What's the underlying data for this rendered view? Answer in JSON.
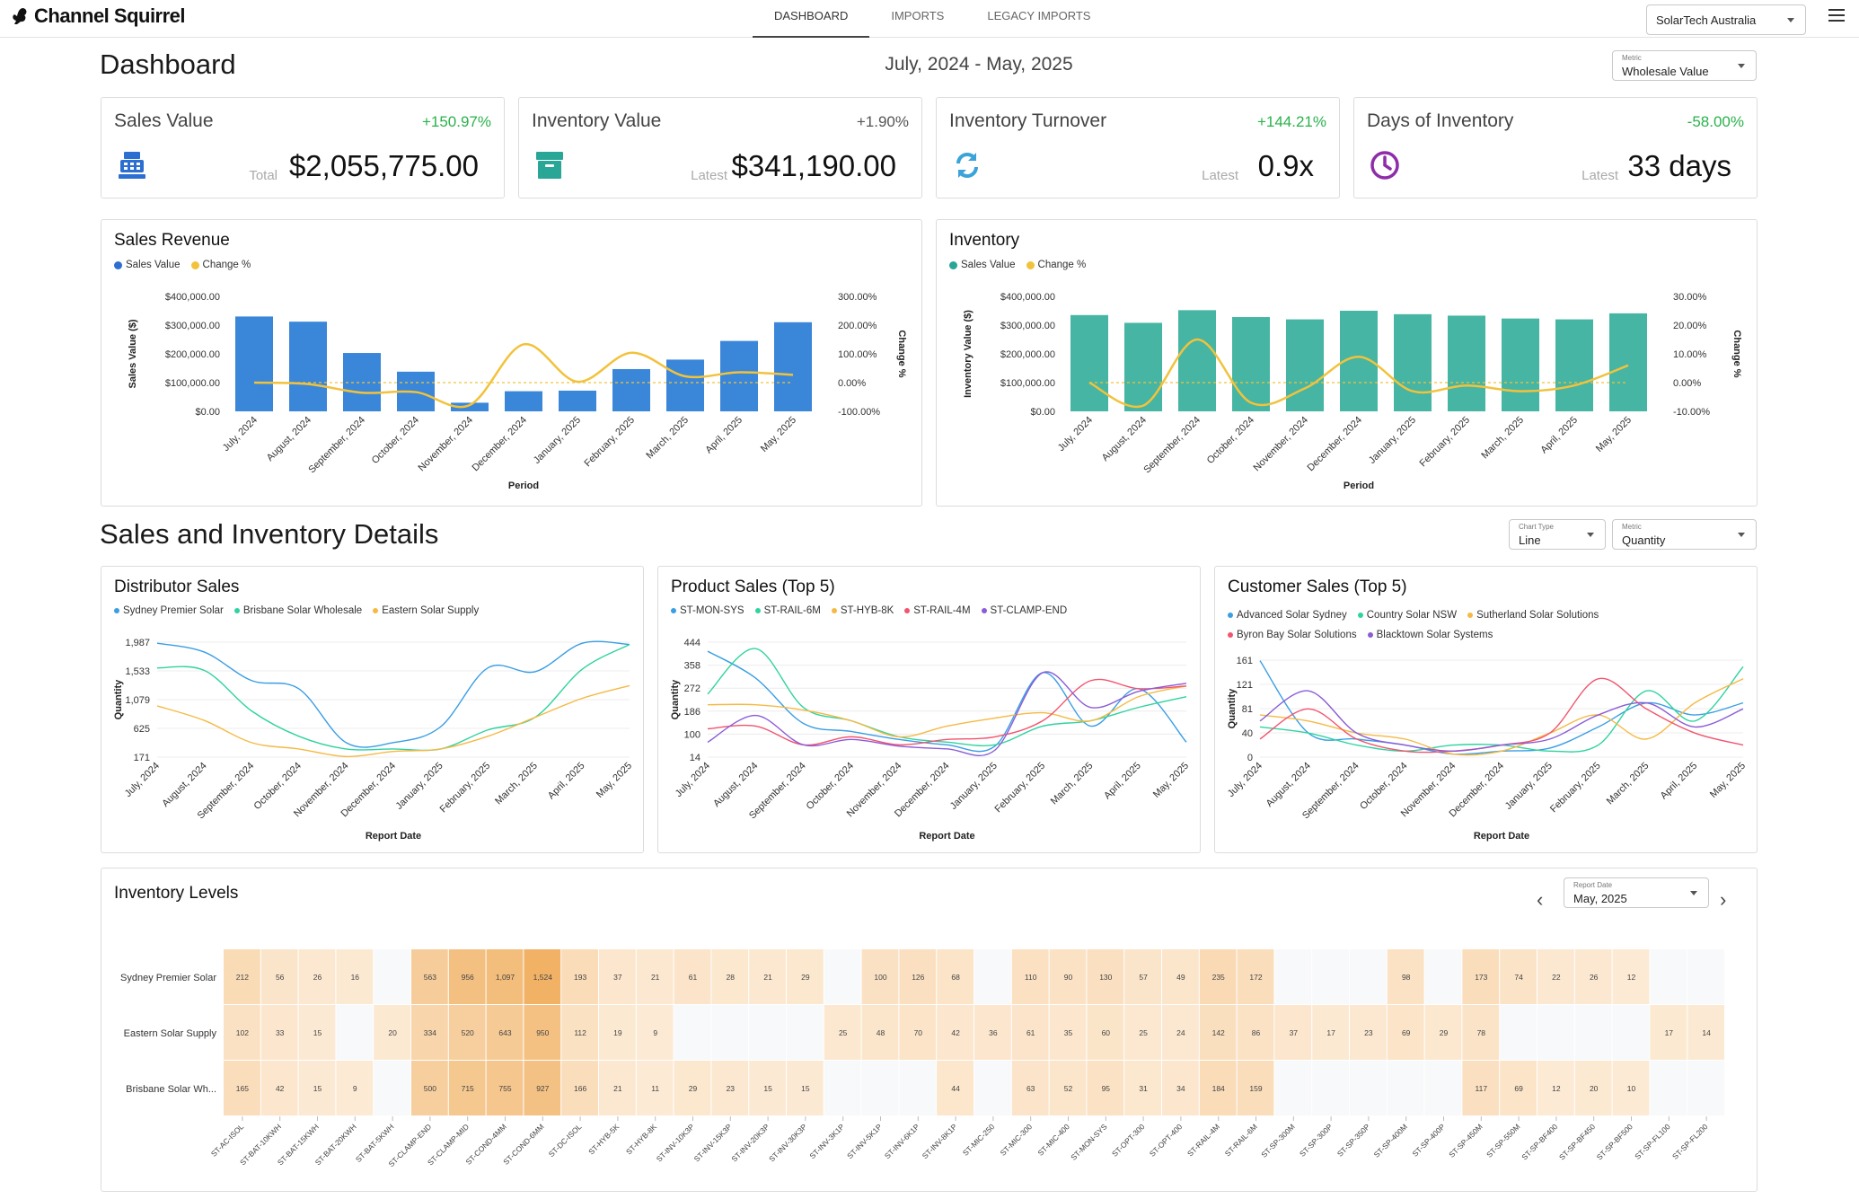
{
  "app": {
    "name": "Channel Squirrel"
  },
  "nav": [
    {
      "label": "DASHBOARD",
      "active": true
    },
    {
      "label": "IMPORTS",
      "active": false
    },
    {
      "label": "LEGACY IMPORTS",
      "active": false
    }
  ],
  "tenant": {
    "value": "SolarTech Australia"
  },
  "dashboard": {
    "title": "Dashboard",
    "date_range": "July, 2024 - May, 2025",
    "metric_select": {
      "label": "Metric",
      "value": "Wholesale Value"
    }
  },
  "kpis": [
    {
      "title": "Sales Value",
      "change": "+150.97%",
      "change_color": "#2bb24c",
      "sub": "Total",
      "value": "$2,055,775.00",
      "icon": "cash-register-icon",
      "icon_color": "#2c6fd1"
    },
    {
      "title": "Inventory Value",
      "change": "+1.90%",
      "change_color": "#555555",
      "sub": "Latest",
      "value": "$341,190.00",
      "icon": "archive-box-icon",
      "icon_color": "#2aa697"
    },
    {
      "title": "Inventory Turnover",
      "change": "+144.21%",
      "change_color": "#2bb24c",
      "sub": "Latest",
      "value": "0.9x",
      "icon": "refresh-icon",
      "icon_color": "#3aa3d8"
    },
    {
      "title": "Days of Inventory",
      "change": "-58.00%",
      "change_color": "#2bb24c",
      "sub": "Latest",
      "value": "33 days",
      "icon": "clock-icon",
      "icon_color": "#8e2da8"
    }
  ],
  "details": {
    "title": "Sales and Inventory Details",
    "chart_type_select": {
      "label": "Chart Type",
      "value": "Line"
    },
    "metric_select": {
      "label": "Metric",
      "value": "Quantity"
    }
  },
  "colors": {
    "blue": "#3a86d8",
    "teal": "#46b5a3",
    "yellow": "#f2c23c",
    "green": "#2bb24c"
  },
  "heatmap_meta": {
    "title": "Inventory Levels",
    "report_date_label": "Report Date",
    "report_date_value": "May, 2025"
  },
  "chart_data": [
    {
      "id": "sales_revenue",
      "type": "bar",
      "title": "Sales Revenue",
      "categories": [
        "July, 2024",
        "August, 2024",
        "September, 2024",
        "October, 2024",
        "November, 2024",
        "December, 2024",
        "January, 2025",
        "February, 2025",
        "March, 2025",
        "April, 2025",
        "May, 2025"
      ],
      "series": [
        {
          "name": "Sales Value",
          "type": "bar",
          "axis": "left",
          "color": "#3a86d8",
          "values": [
            330000,
            312000,
            203000,
            138000,
            30000,
            70000,
            72000,
            147000,
            180000,
            245000,
            310000
          ]
        },
        {
          "name": "Change %",
          "type": "line",
          "axis": "right",
          "color": "#f2c23c",
          "values": [
            0,
            -5,
            -35,
            -33,
            -78,
            133,
            3,
            104,
            22,
            36,
            27
          ]
        }
      ],
      "xlabel": "Period",
      "ylabel": "Sales Value ($)",
      "y2label": "Change %",
      "ylim": [
        0,
        400000
      ],
      "y2lim": [
        -100,
        300
      ],
      "yticks": [
        "$0.00",
        "$100,000.00",
        "$200,000.00",
        "$300,000.00",
        "$400,000.00"
      ],
      "y2ticks": [
        "-100.00%",
        "0.00%",
        "100.00%",
        "200.00%",
        "300.00%"
      ]
    },
    {
      "id": "inventory",
      "type": "bar",
      "title": "Inventory",
      "categories": [
        "July, 2024",
        "August, 2024",
        "September, 2024",
        "October, 2024",
        "November, 2024",
        "December, 2024",
        "January, 2025",
        "February, 2025",
        "March, 2025",
        "April, 2025",
        "May, 2025"
      ],
      "series": [
        {
          "name": "Sales Value",
          "type": "bar",
          "axis": "left",
          "color": "#46b5a3",
          "values": [
            335000,
            308000,
            352000,
            328000,
            320000,
            350000,
            338000,
            333000,
            323000,
            320000,
            341000
          ]
        },
        {
          "name": "Change %",
          "type": "line",
          "axis": "right",
          "color": "#f2c23c",
          "values": [
            0,
            -8,
            15,
            -7,
            -2,
            9,
            -3,
            -1,
            -3,
            -1,
            6
          ]
        }
      ],
      "xlabel": "Period",
      "ylabel": "Inventory Value ($)",
      "y2label": "Change %",
      "ylim": [
        0,
        400000
      ],
      "y2lim": [
        -10,
        30
      ],
      "yticks": [
        "$0.00",
        "$100,000.00",
        "$200,000.00",
        "$300,000.00",
        "$400,000.00"
      ],
      "y2ticks": [
        "-10.00%",
        "0.00%",
        "10.00%",
        "20.00%",
        "30.00%"
      ]
    },
    {
      "id": "distributor_sales",
      "type": "line",
      "title": "Distributor Sales",
      "categories": [
        "July, 2024",
        "August, 2024",
        "September, 2024",
        "October, 2024",
        "November, 2024",
        "December, 2024",
        "January, 2025",
        "February, 2025",
        "March, 2025",
        "April, 2025",
        "May, 2025"
      ],
      "series": [
        {
          "name": "Sydney Premier Solar",
          "color": "#3a9ee4",
          "values": [
            1970,
            1830,
            1380,
            1250,
            400,
            400,
            650,
            1580,
            1520,
            1970,
            1950
          ]
        },
        {
          "name": "Brisbane Solar Wholesale",
          "color": "#2fd3a0",
          "values": [
            1580,
            1540,
            900,
            500,
            300,
            300,
            300,
            600,
            800,
            1560,
            1950
          ]
        },
        {
          "name": "Eastern Solar Supply",
          "color": "#f5b944",
          "values": [
            980,
            750,
            400,
            300,
            180,
            260,
            300,
            500,
            800,
            1100,
            1300
          ]
        }
      ],
      "xlabel": "Report Date",
      "ylabel": "Quantity",
      "ylim": [
        171,
        1987
      ],
      "yticks": [
        "171",
        "625",
        "1,079",
        "1,533",
        "1,987"
      ]
    },
    {
      "id": "product_sales",
      "type": "line",
      "title": "Product Sales (Top 5)",
      "categories": [
        "July, 2024",
        "August, 2024",
        "September, 2024",
        "October, 2024",
        "November, 2024",
        "December, 2024",
        "January, 2025",
        "February, 2025",
        "March, 2025",
        "April, 2025",
        "May, 2025"
      ],
      "series": [
        {
          "name": "ST-MON-SYS",
          "color": "#3a9ee4",
          "values": [
            410,
            310,
            140,
            110,
            80,
            60,
            55,
            330,
            130,
            270,
            70
          ]
        },
        {
          "name": "ST-RAIL-6M",
          "color": "#2fd3a0",
          "values": [
            250,
            420,
            200,
            150,
            90,
            70,
            60,
            130,
            150,
            200,
            240
          ]
        },
        {
          "name": "ST-HYB-8K",
          "color": "#f5b944",
          "values": [
            210,
            210,
            190,
            150,
            90,
            130,
            160,
            180,
            150,
            240,
            280
          ]
        },
        {
          "name": "ST-RAIL-4M",
          "color": "#f2546e",
          "values": [
            120,
            130,
            60,
            90,
            60,
            80,
            90,
            150,
            300,
            270,
            280
          ]
        },
        {
          "name": "ST-CLAMP-END",
          "color": "#8b5cd6",
          "values": [
            70,
            170,
            60,
            80,
            55,
            45,
            40,
            330,
            200,
            260,
            290
          ]
        }
      ],
      "xlabel": "Report Date",
      "ylabel": "Quantity",
      "ylim": [
        14,
        444
      ],
      "yticks": [
        "14",
        "100",
        "186",
        "272",
        "358",
        "444"
      ]
    },
    {
      "id": "customer_sales",
      "type": "line",
      "title": "Customer Sales (Top 5)",
      "categories": [
        "July, 2024",
        "August, 2024",
        "September, 2024",
        "October, 2024",
        "November, 2024",
        "December, 2024",
        "January, 2025",
        "February, 2025",
        "March, 2025",
        "April, 2025",
        "May, 2025"
      ],
      "series": [
        {
          "name": "Advanced Solar Sydney",
          "color": "#3a9ee4",
          "values": [
            160,
            40,
            30,
            20,
            5,
            10,
            15,
            50,
            90,
            70,
            90
          ]
        },
        {
          "name": "Country Solar NSW",
          "color": "#2fd3a0",
          "values": [
            50,
            40,
            20,
            10,
            20,
            20,
            10,
            20,
            110,
            60,
            150
          ]
        },
        {
          "name": "Sutherland Solar Solutions",
          "color": "#f5b944",
          "values": [
            70,
            60,
            40,
            30,
            5,
            10,
            40,
            70,
            30,
            90,
            130
          ]
        },
        {
          "name": "Byron Bay Solar Solutions",
          "color": "#f2546e",
          "values": [
            30,
            80,
            30,
            10,
            10,
            20,
            40,
            130,
            80,
            40,
            20
          ]
        },
        {
          "name": "Blacktown Solar Systems",
          "color": "#8b5cd6",
          "values": [
            60,
            110,
            40,
            20,
            10,
            20,
            30,
            70,
            90,
            50,
            80
          ]
        }
      ],
      "xlabel": "Report Date",
      "ylabel": "Quantity",
      "ylim": [
        0,
        161
      ],
      "yticks": [
        "0",
        "40",
        "81",
        "121",
        "161"
      ]
    },
    {
      "id": "inventory_levels",
      "type": "heatmap",
      "title": "Inventory Levels",
      "rows": [
        "Sydney Premier Solar",
        "Eastern Solar Supply",
        "Brisbane Solar Wh..."
      ],
      "columns": [
        "ST-AC-ISOL",
        "ST-BAT-10KWH",
        "ST-BAT-15KWH",
        "ST-BAT-20KWH",
        "ST-BAT-5KWH",
        "ST-CLAMP-END",
        "ST-CLAMP-MID",
        "ST-COND-4MM",
        "ST-COND-6MM",
        "ST-DC-ISOL",
        "ST-HYB-5K",
        "ST-HYB-8K",
        "ST-INV-10K3P",
        "ST-INV-15K3P",
        "ST-INV-20K3P",
        "ST-INV-30K3P",
        "ST-INV-3K1P",
        "ST-INV-5K1P",
        "ST-INV-6K1P",
        "ST-INV-8K1P",
        "ST-MIC-250",
        "ST-MIC-300",
        "ST-MIC-400",
        "ST-MON-SYS",
        "ST-OPT-300",
        "ST-OPT-400",
        "ST-RAIL-4M",
        "ST-RAIL-6M",
        "ST-SP-300M",
        "ST-SP-300P",
        "ST-SP-350P",
        "ST-SP-400M",
        "ST-SP-400P",
        "ST-SP-450M",
        "ST-SP-550M",
        "ST-SP-BF400",
        "ST-SP-BF450",
        "ST-SP-BF500",
        "ST-SP-FL100",
        "ST-SP-FL200"
      ],
      "values": [
        [
          212,
          56,
          26,
          16,
          null,
          563,
          956,
          1097,
          1524,
          193,
          37,
          21,
          61,
          28,
          21,
          29,
          null,
          100,
          126,
          68,
          null,
          110,
          90,
          130,
          57,
          49,
          235,
          172,
          null,
          null,
          null,
          98,
          null,
          173,
          74,
          22,
          26,
          12,
          null,
          null
        ],
        [
          102,
          33,
          15,
          null,
          20,
          334,
          520,
          643,
          950,
          112,
          19,
          9,
          null,
          null,
          null,
          null,
          25,
          48,
          70,
          42,
          36,
          61,
          35,
          60,
          25,
          24,
          142,
          86,
          37,
          17,
          23,
          69,
          29,
          78,
          null,
          null,
          null,
          null,
          17,
          14
        ],
        [
          165,
          42,
          15,
          9,
          null,
          500,
          715,
          755,
          927,
          166,
          21,
          11,
          29,
          23,
          15,
          15,
          null,
          null,
          null,
          44,
          null,
          63,
          52,
          95,
          31,
          34,
          184,
          159,
          null,
          null,
          null,
          null,
          null,
          117,
          69,
          12,
          20,
          10,
          null,
          null
        ]
      ],
      "labels": [
        [
          "212",
          "56",
          "26",
          "16",
          "",
          "563",
          "956",
          "1,097",
          "1,524",
          "193",
          "37",
          "21",
          "61",
          "28",
          "21",
          "29",
          "",
          "100",
          "126",
          "68",
          "",
          "110",
          "90",
          "130",
          "57",
          "49",
          "235",
          "172",
          "",
          "",
          "",
          "98",
          "",
          "173",
          "74",
          "22",
          "26",
          "12",
          "",
          ""
        ],
        [
          "102",
          "33",
          "15",
          "",
          "20",
          "334",
          "520",
          "643",
          "950",
          "112",
          "19",
          "9",
          "",
          "",
          "",
          "",
          "25",
          "48",
          "70",
          "42",
          "36",
          "61",
          "35",
          "60",
          "25",
          "24",
          "142",
          "86",
          "37",
          "17",
          "23",
          "69",
          "29",
          "78",
          "",
          "",
          "",
          "",
          "17",
          "14"
        ],
        [
          "165",
          "42",
          "15",
          "9",
          "",
          "500",
          "715",
          "755",
          "927",
          "166",
          "21",
          "11",
          "29",
          "23",
          "15",
          "15",
          "",
          "",
          "",
          "44",
          "",
          "63",
          "52",
          "95",
          "31",
          "34",
          "184",
          "159",
          "",
          "",
          "",
          "",
          "",
          "117",
          "69",
          "12",
          "20",
          "10",
          "",
          ""
        ]
      ]
    }
  ]
}
